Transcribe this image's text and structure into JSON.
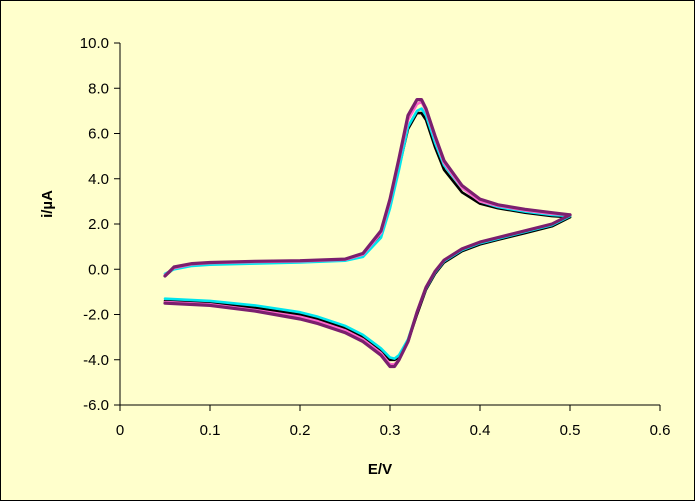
{
  "chart_data": {
    "type": "line",
    "title": "",
    "xlabel": "E/V",
    "ylabel": "i/µA",
    "xlim": [
      0,
      0.6
    ],
    "ylim": [
      -6.0,
      10.0
    ],
    "xticks": [
      0,
      0.1,
      0.2,
      0.3,
      0.4,
      0.5,
      0.6
    ],
    "xtick_labels": [
      "0",
      "0.1",
      "0.2",
      "0.3",
      "0.4",
      "0.5",
      "0.6"
    ],
    "yticks": [
      -6.0,
      -4.0,
      -2.0,
      0.0,
      2.0,
      4.0,
      6.0,
      8.0,
      10.0
    ],
    "ytick_labels": [
      "-6.0",
      "-4.0",
      "-2.0",
      "0.0",
      "2.0",
      "4.0",
      "6.0",
      "8.0",
      "10.0"
    ],
    "grid": false,
    "legend": "none",
    "series": [
      {
        "color": "#000000",
        "forward": {
          "x": [
            0.05,
            0.06,
            0.08,
            0.1,
            0.15,
            0.2,
            0.25,
            0.27,
            0.29,
            0.3,
            0.31,
            0.32,
            0.33,
            0.335,
            0.34,
            0.35,
            0.36,
            0.38,
            0.4,
            0.42,
            0.45,
            0.48,
            0.5
          ],
          "y": [
            -0.3,
            0.05,
            0.2,
            0.25,
            0.3,
            0.32,
            0.4,
            0.6,
            1.5,
            2.8,
            4.5,
            6.2,
            6.9,
            6.9,
            6.6,
            5.4,
            4.4,
            3.4,
            2.9,
            2.7,
            2.5,
            2.35,
            2.3
          ]
        },
        "reverse": {
          "x": [
            0.5,
            0.48,
            0.45,
            0.42,
            0.4,
            0.38,
            0.36,
            0.35,
            0.34,
            0.33,
            0.32,
            0.31,
            0.305,
            0.3,
            0.29,
            0.27,
            0.25,
            0.22,
            0.2,
            0.15,
            0.1,
            0.05
          ],
          "y": [
            2.3,
            1.9,
            1.6,
            1.3,
            1.1,
            0.8,
            0.3,
            -0.2,
            -0.9,
            -2.0,
            -3.2,
            -3.9,
            -4.0,
            -4.0,
            -3.6,
            -3.0,
            -2.6,
            -2.2,
            -2.0,
            -1.7,
            -1.5,
            -1.4
          ]
        }
      },
      {
        "color": "#00E5EE",
        "forward": {
          "x": [
            0.05,
            0.06,
            0.08,
            0.1,
            0.15,
            0.2,
            0.25,
            0.27,
            0.29,
            0.3,
            0.31,
            0.32,
            0.33,
            0.335,
            0.34,
            0.35,
            0.36,
            0.38,
            0.4,
            0.42,
            0.45,
            0.48,
            0.5
          ],
          "y": [
            -0.2,
            0.0,
            0.15,
            0.2,
            0.25,
            0.3,
            0.38,
            0.55,
            1.4,
            2.7,
            4.4,
            6.3,
            7.0,
            7.1,
            6.8,
            5.6,
            4.6,
            3.6,
            3.0,
            2.75,
            2.55,
            2.4,
            2.35
          ]
        },
        "reverse": {
          "x": [
            0.5,
            0.48,
            0.45,
            0.42,
            0.4,
            0.38,
            0.36,
            0.35,
            0.34,
            0.33,
            0.32,
            0.31,
            0.305,
            0.3,
            0.29,
            0.27,
            0.25,
            0.22,
            0.2,
            0.15,
            0.1,
            0.05
          ],
          "y": [
            2.35,
            1.95,
            1.65,
            1.35,
            1.15,
            0.85,
            0.35,
            -0.15,
            -0.85,
            -1.9,
            -3.1,
            -3.8,
            -3.95,
            -3.9,
            -3.5,
            -2.9,
            -2.5,
            -2.1,
            -1.9,
            -1.6,
            -1.4,
            -1.3
          ]
        }
      },
      {
        "color": "#FF66CC",
        "forward": {
          "x": [
            0.05,
            0.06,
            0.08,
            0.1,
            0.15,
            0.2,
            0.25,
            0.27,
            0.29,
            0.3,
            0.31,
            0.32,
            0.33,
            0.335,
            0.34,
            0.35,
            0.36,
            0.38,
            0.4,
            0.42,
            0.45,
            0.48,
            0.5
          ],
          "y": [
            -0.25,
            0.05,
            0.22,
            0.27,
            0.32,
            0.35,
            0.42,
            0.65,
            1.6,
            3.0,
            4.8,
            6.6,
            7.3,
            7.4,
            7.0,
            5.8,
            4.7,
            3.6,
            3.0,
            2.8,
            2.6,
            2.45,
            2.4
          ]
        },
        "reverse": {
          "x": [
            0.5,
            0.48,
            0.45,
            0.42,
            0.4,
            0.38,
            0.36,
            0.35,
            0.34,
            0.33,
            0.32,
            0.31,
            0.305,
            0.3,
            0.29,
            0.27,
            0.25,
            0.22,
            0.2,
            0.15,
            0.1,
            0.05
          ],
          "y": [
            2.4,
            2.0,
            1.7,
            1.4,
            1.2,
            0.9,
            0.4,
            -0.1,
            -0.8,
            -1.9,
            -3.2,
            -4.0,
            -4.2,
            -4.2,
            -3.7,
            -3.1,
            -2.7,
            -2.3,
            -2.1,
            -1.8,
            -1.55,
            -1.45
          ]
        }
      },
      {
        "color": "#7B1F6E",
        "forward": {
          "x": [
            0.05,
            0.06,
            0.08,
            0.1,
            0.15,
            0.2,
            0.25,
            0.27,
            0.29,
            0.3,
            0.31,
            0.32,
            0.33,
            0.335,
            0.34,
            0.35,
            0.36,
            0.38,
            0.4,
            0.42,
            0.45,
            0.48,
            0.5
          ],
          "y": [
            -0.3,
            0.1,
            0.25,
            0.3,
            0.35,
            0.38,
            0.45,
            0.7,
            1.7,
            3.1,
            4.9,
            6.8,
            7.5,
            7.5,
            7.1,
            5.9,
            4.8,
            3.7,
            3.1,
            2.85,
            2.65,
            2.5,
            2.4
          ]
        },
        "reverse": {
          "x": [
            0.5,
            0.48,
            0.45,
            0.42,
            0.4,
            0.38,
            0.36,
            0.35,
            0.34,
            0.33,
            0.32,
            0.31,
            0.305,
            0.3,
            0.29,
            0.27,
            0.25,
            0.22,
            0.2,
            0.15,
            0.1,
            0.05
          ],
          "y": [
            2.4,
            2.0,
            1.7,
            1.4,
            1.2,
            0.9,
            0.4,
            -0.1,
            -0.8,
            -1.9,
            -3.2,
            -4.0,
            -4.3,
            -4.3,
            -3.8,
            -3.2,
            -2.8,
            -2.4,
            -2.2,
            -1.85,
            -1.6,
            -1.5
          ]
        }
      }
    ]
  }
}
